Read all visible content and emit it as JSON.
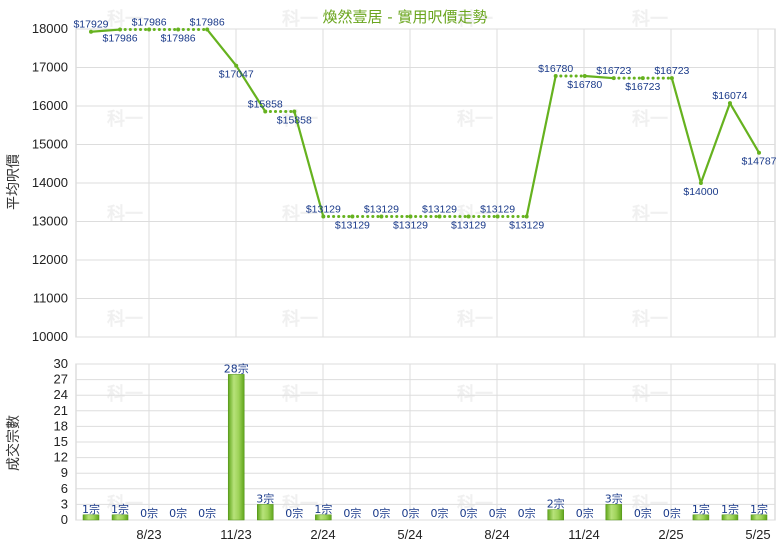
{
  "chart_data": [
    {
      "type": "line",
      "title": "煥然壹居 - 實用呎價走勢",
      "ylabel": "平均呎價",
      "ylim": [
        10000,
        18000
      ],
      "yticks": [
        10000,
        11000,
        12000,
        13000,
        14000,
        15000,
        16000,
        17000,
        18000
      ],
      "xticks": [
        "8/23",
        "11/23",
        "2/24",
        "5/24",
        "8/24",
        "11/24",
        "2/25",
        "5/25"
      ],
      "grid": true,
      "legend": "none",
      "series": [
        {
          "values": [
            17929,
            17986,
            17986,
            17986,
            17986,
            17047,
            15858,
            15858,
            13129,
            13129,
            13129,
            13129,
            13129,
            13129,
            13129,
            13129,
            16780,
            16780,
            16723,
            16723,
            16723,
            14000,
            16074,
            14787
          ],
          "labels": [
            "$17929",
            "$17986",
            "$17986",
            "$17986",
            "$17986",
            "$17047",
            "$15858",
            "$15858",
            "$13129",
            "$13129",
            "$13129",
            "$13129",
            "$13129",
            "$13129",
            "$13129",
            "$13129",
            "$16780",
            "$16780",
            "$16723",
            "$16723",
            "$16723",
            "$14000",
            "$16074",
            "$14787"
          ],
          "has_transaction": [
            true,
            true,
            false,
            false,
            false,
            true,
            true,
            false,
            true,
            false,
            false,
            false,
            false,
            false,
            false,
            false,
            true,
            false,
            true,
            false,
            false,
            true,
            true,
            true
          ]
        }
      ]
    },
    {
      "type": "bar",
      "ylabel": "成交宗數",
      "ylim": [
        0,
        30
      ],
      "yticks": [
        0,
        3,
        6,
        9,
        12,
        15,
        18,
        21,
        24,
        27,
        30
      ],
      "xticks": [
        "8/23",
        "11/23",
        "2/24",
        "5/24",
        "8/24",
        "11/24",
        "2/25",
        "5/25"
      ],
      "grid": true,
      "legend": "none",
      "values": [
        1,
        1,
        0,
        0,
        0,
        28,
        3,
        0,
        1,
        0,
        0,
        0,
        0,
        0,
        0,
        0,
        2,
        0,
        3,
        0,
        0,
        1,
        1,
        1
      ],
      "labels": [
        "1宗",
        "1宗",
        "0宗",
        "0宗",
        "0宗",
        "28宗",
        "3宗",
        "0宗",
        "1宗",
        "0宗",
        "0宗",
        "0宗",
        "0宗",
        "0宗",
        "0宗",
        "0宗",
        "2宗",
        "0宗",
        "3宗",
        "0宗",
        "0宗",
        "1宗",
        "1宗",
        "1宗"
      ]
    }
  ],
  "watermark": "科一",
  "colors": {
    "line": "#66b21f",
    "bar_light": "#b7e27a",
    "bar_dark": "#5fa51b",
    "grid": "#dddddd",
    "label": "#1a3a8a",
    "title": "#6aa51e"
  }
}
